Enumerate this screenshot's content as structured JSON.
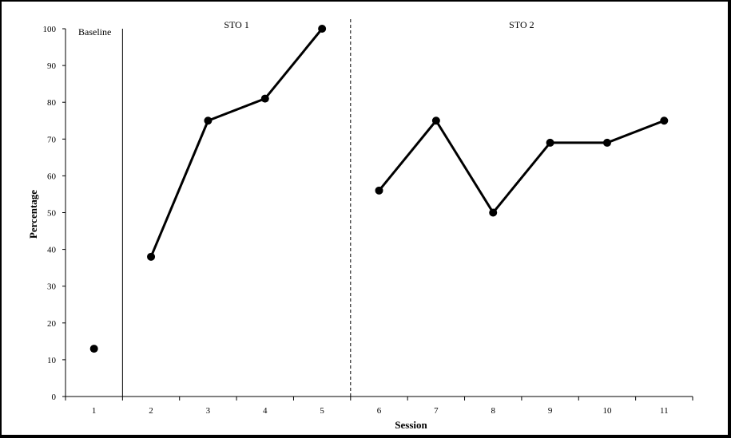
{
  "chart_data": {
    "type": "line",
    "xlabel": "Session",
    "ylabel": "Percentage",
    "ylim": [
      0,
      100
    ],
    "yticks": [
      0,
      10,
      20,
      30,
      40,
      50,
      60,
      70,
      80,
      90,
      100
    ],
    "categories": [
      "1",
      "2",
      "3",
      "4",
      "5",
      "6",
      "7",
      "8",
      "9",
      "10",
      "11"
    ],
    "grid": false,
    "phases": [
      {
        "label": "Baseline",
        "sessions": [
          1
        ],
        "divider_after": "solid"
      },
      {
        "label": "STO 1",
        "sessions": [
          2,
          3,
          4,
          5
        ],
        "divider_after": "dashed"
      },
      {
        "label": "STO 2",
        "sessions": [
          6,
          7,
          8,
          9,
          10,
          11
        ]
      }
    ],
    "series": [
      {
        "points": [
          {
            "x": 1,
            "y": 13,
            "phase": 0
          },
          {
            "x": 2,
            "y": 38,
            "phase": 1
          },
          {
            "x": 3,
            "y": 75,
            "phase": 1
          },
          {
            "x": 4,
            "y": 81,
            "phase": 1
          },
          {
            "x": 5,
            "y": 100,
            "phase": 1
          },
          {
            "x": 6,
            "y": 56,
            "phase": 2
          },
          {
            "x": 7,
            "y": 75,
            "phase": 2
          },
          {
            "x": 8,
            "y": 50,
            "phase": 2
          },
          {
            "x": 9,
            "y": 69,
            "phase": 2
          },
          {
            "x": 10,
            "y": 69,
            "phase": 2
          },
          {
            "x": 11,
            "y": 75,
            "phase": 2
          }
        ],
        "color": "#000000"
      }
    ],
    "colors": {
      "frame": "#000000",
      "background": "#ffffff",
      "ink": "#000000"
    }
  }
}
